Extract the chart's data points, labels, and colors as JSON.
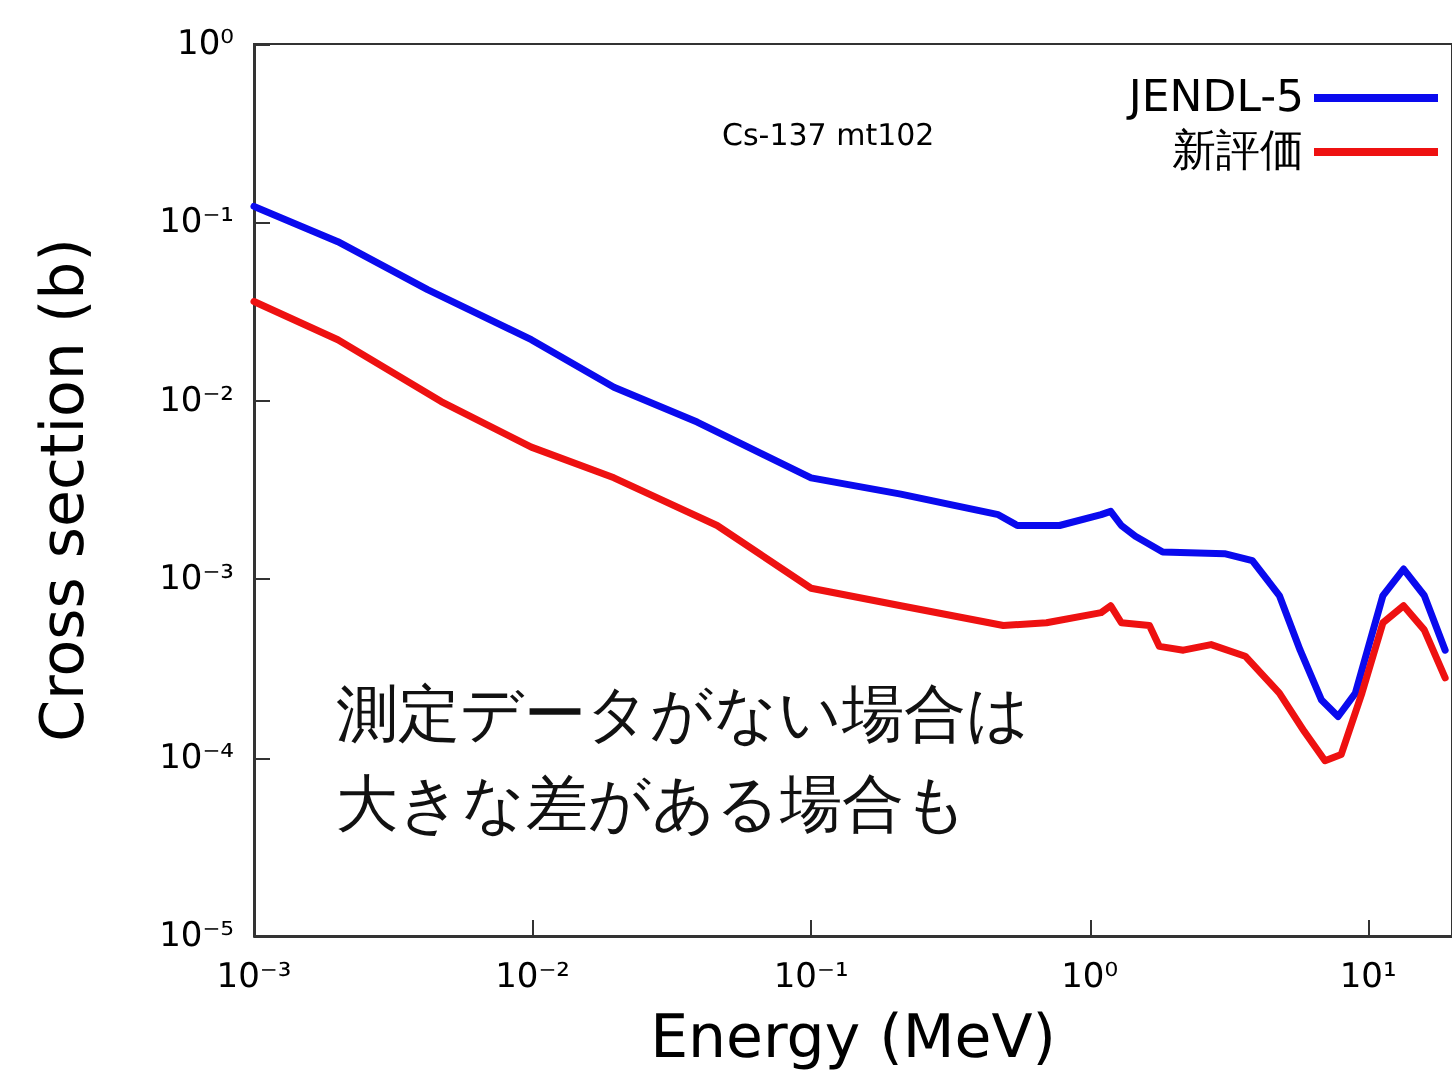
{
  "chart_data": {
    "type": "line",
    "title": "Cs-137 mt102",
    "xlabel": "Energy (MeV)",
    "ylabel": "Cross section (b)",
    "annotations": [
      "測定データがない場合は",
      "大きな差がある場合も"
    ],
    "log": "xy",
    "grid": false,
    "legend": "top right",
    "marker": "none",
    "line_style": "solid",
    "xlim": [
      0.001,
      20
    ],
    "ylim": [
      1e-05,
      1
    ],
    "xticks": [
      {
        "value": 0.001,
        "label": "10⁻³"
      },
      {
        "value": 0.01,
        "label": "10⁻²"
      },
      {
        "value": 0.1,
        "label": "10⁻¹"
      },
      {
        "value": 1,
        "label": "10⁰"
      },
      {
        "value": 10,
        "label": "10¹"
      }
    ],
    "yticks": [
      {
        "value": 1e-05,
        "label": "10⁻⁵"
      },
      {
        "value": 0.0001,
        "label": "10⁻⁴"
      },
      {
        "value": 0.001,
        "label": "10⁻³"
      },
      {
        "value": 0.01,
        "label": "10⁻²"
      },
      {
        "value": 0.1,
        "label": "10⁻¹"
      },
      {
        "value": 1,
        "label": "10⁰"
      }
    ],
    "series": [
      {
        "name": "JENDL-5",
        "color": "#0a0aee",
        "x": [
          0.001,
          0.002,
          0.0042,
          0.0099,
          0.0196,
          0.039,
          0.1,
          0.21,
          0.47,
          0.55,
          0.78,
          1.1,
          1.19,
          1.3,
          1.46,
          1.83,
          3.05,
          3.84,
          4.8,
          5.7,
          6.8,
          7.8,
          9.0,
          11.3,
          13.4,
          15.9,
          18.9
        ],
        "values": [
          0.123,
          0.078,
          0.042,
          0.022,
          0.0119,
          0.0076,
          0.0037,
          0.003,
          0.0023,
          0.002,
          0.002,
          0.0023,
          0.0024,
          0.002,
          0.00174,
          0.00142,
          0.00139,
          0.00127,
          0.00081,
          0.0004,
          0.00021,
          0.00017,
          0.00023,
          0.00081,
          0.00114,
          0.00081,
          0.0004
        ]
      },
      {
        "name": "新評価",
        "color": "#ee1111",
        "x": [
          0.001,
          0.002,
          0.0047,
          0.0099,
          0.0196,
          0.046,
          0.1,
          0.21,
          0.49,
          0.7,
          1.1,
          1.19,
          1.3,
          1.64,
          1.78,
          2.17,
          2.73,
          3.62,
          4.8,
          5.9,
          7.0,
          8.0,
          9.5,
          11.3,
          13.4,
          15.9,
          18.9
        ],
        "values": [
          0.036,
          0.022,
          0.0099,
          0.0055,
          0.0037,
          0.002,
          0.00089,
          0.00071,
          0.00055,
          0.00057,
          0.00065,
          0.00071,
          0.00057,
          0.00055,
          0.00042,
          0.0004,
          0.00043,
          0.00037,
          0.00023,
          0.00014,
          9.6e-05,
          0.000104,
          0.00023,
          0.00057,
          0.00071,
          0.00052,
          0.00028
        ]
      }
    ]
  }
}
